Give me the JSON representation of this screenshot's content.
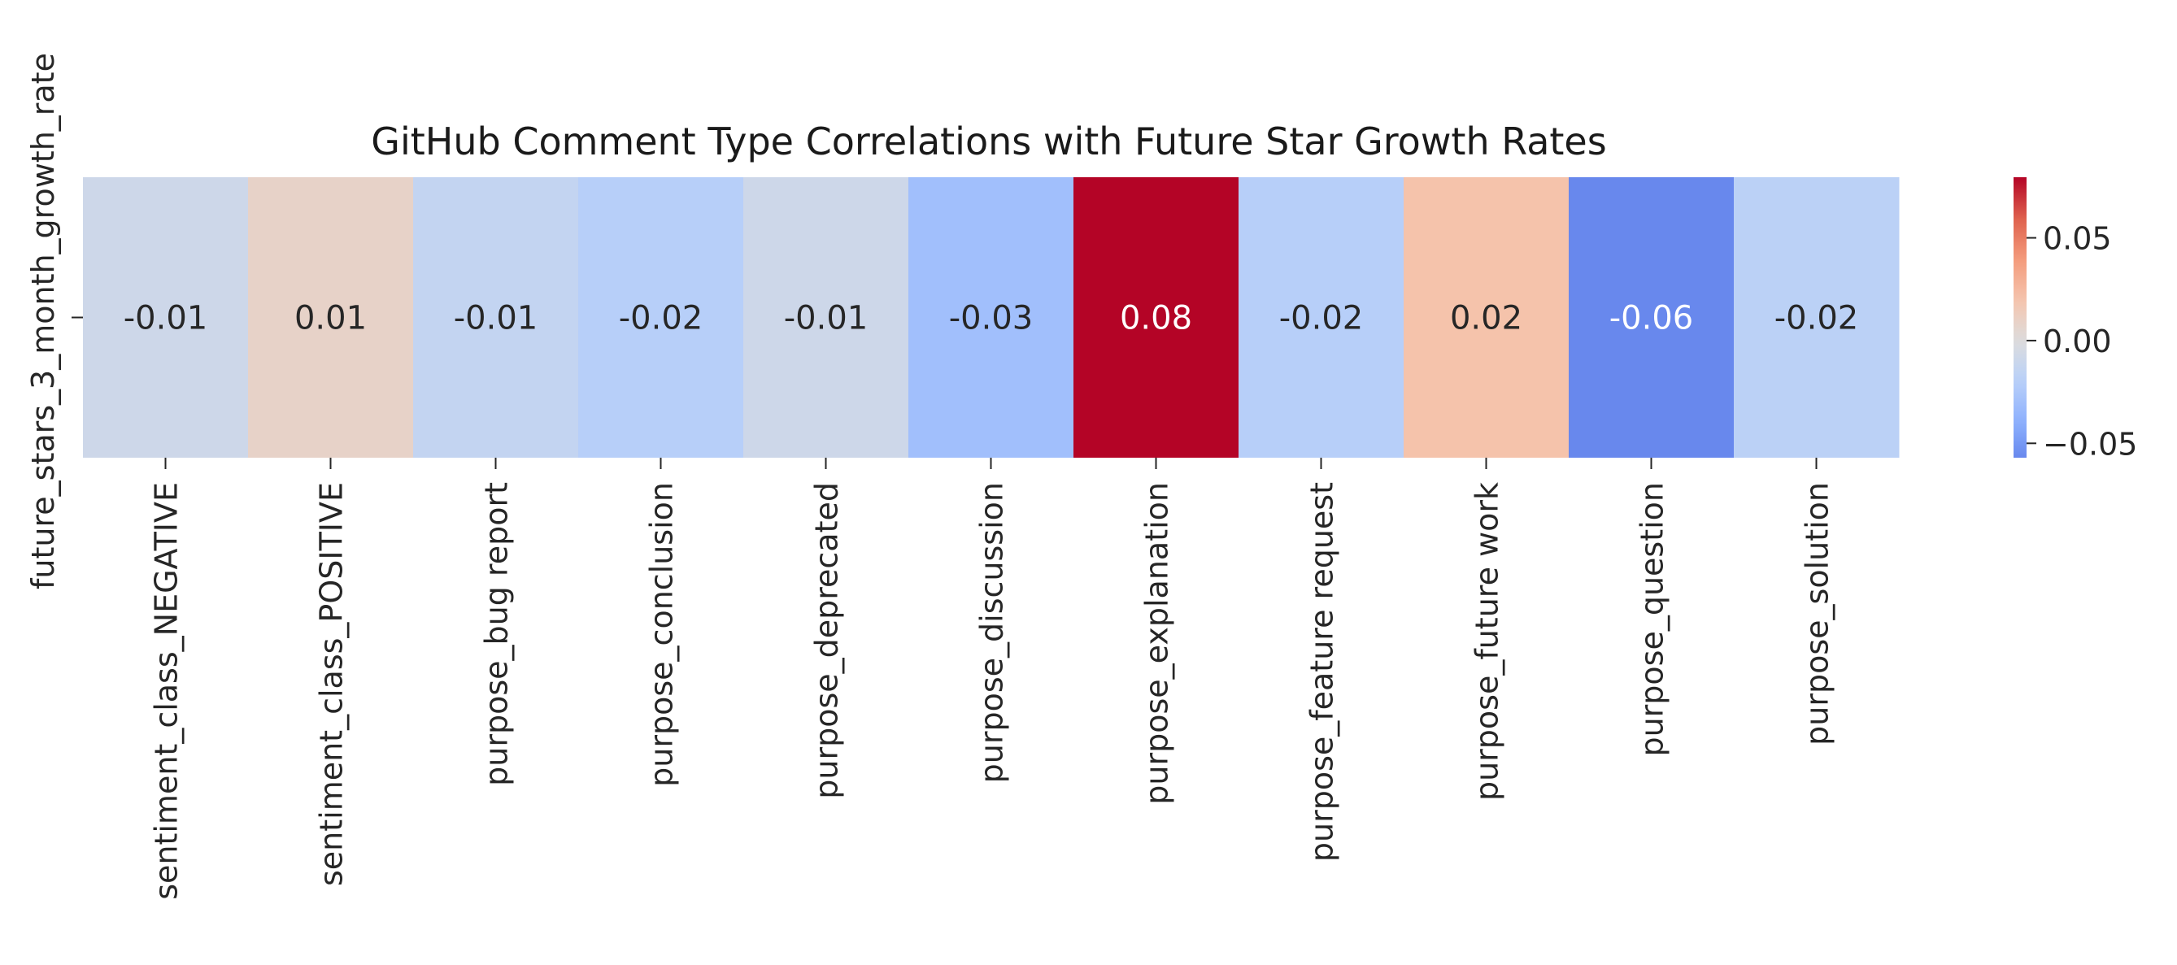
{
  "chart_data": {
    "type": "heatmap",
    "title": "GitHub Comment Type Correlations with Future Star Growth Rates",
    "xlabel": "",
    "ylabel": "",
    "rows": [
      "future_stars_3_month_growth_rate"
    ],
    "columns": [
      "sentiment_class_NEGATIVE",
      "sentiment_class_POSITIVE",
      "purpose_bug report",
      "purpose_conclusion",
      "purpose_deprecated",
      "purpose_discussion",
      "purpose_explanation",
      "purpose_feature request",
      "purpose_future work",
      "purpose_question",
      "purpose_solution"
    ],
    "values": [
      [
        -0.0085,
        0.0085,
        -0.0142,
        -0.0205,
        -0.0085,
        -0.0305,
        0.0795,
        -0.0205,
        0.0205,
        -0.057,
        -0.018
      ]
    ],
    "annotations": [
      [
        "-0.01",
        "0.01",
        "-0.01",
        "-0.02",
        "-0.01",
        "-0.03",
        "0.08",
        "-0.02",
        "0.02",
        "-0.06",
        "-0.02"
      ]
    ],
    "colormap": "coolwarm",
    "vmin": -0.057,
    "vmax": 0.0795,
    "colorbar": {
      "ticks": [
        0.05,
        0.0,
        -0.05
      ],
      "tick_labels": [
        "0.05",
        "0.00",
        "−0.05"
      ]
    },
    "grid": false,
    "legend": "colorbar-right"
  }
}
